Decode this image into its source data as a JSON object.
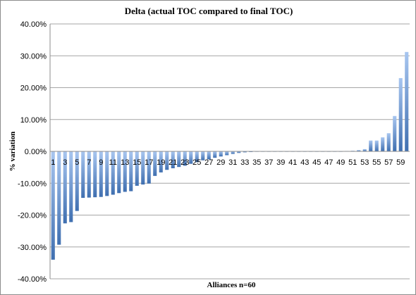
{
  "chart_data": {
    "type": "bar",
    "title": "Delta (actual TOC compared to final TOC)",
    "xlabel": "Alliances n=60",
    "ylabel": "% variation",
    "ylim": [
      -0.4,
      0.4
    ],
    "y_ticks": [
      0.4,
      0.3,
      0.2,
      0.1,
      0.0,
      -0.1,
      -0.2,
      -0.3,
      -0.4
    ],
    "y_tick_labels": [
      "40.00%",
      "30.00%",
      "20.00%",
      "10.00%",
      "0.00%",
      "-10.00%",
      "-20.00%",
      "-30.00%",
      "-40.00%"
    ],
    "grid": true,
    "legend": "none",
    "categories": [
      "1",
      "2",
      "3",
      "4",
      "5",
      "6",
      "7",
      "8",
      "9",
      "10",
      "11",
      "12",
      "13",
      "14",
      "15",
      "16",
      "17",
      "18",
      "19",
      "20",
      "21",
      "22",
      "23",
      "24",
      "25",
      "26",
      "27",
      "28",
      "29",
      "30",
      "31",
      "32",
      "33",
      "34",
      "35",
      "36",
      "37",
      "38",
      "39",
      "40",
      "41",
      "42",
      "43",
      "44",
      "45",
      "46",
      "47",
      "48",
      "49",
      "50",
      "51",
      "52",
      "53",
      "54",
      "55",
      "56",
      "57",
      "58",
      "59",
      "60"
    ],
    "x_tick_labels": [
      "1",
      "3",
      "5",
      "7",
      "9",
      "11",
      "13",
      "15",
      "17",
      "19",
      "21",
      "23",
      "25",
      "27",
      "29",
      "31",
      "33",
      "35",
      "37",
      "39",
      "41",
      "43",
      "45",
      "47",
      "49",
      "51",
      "53",
      "55",
      "57",
      "59"
    ],
    "values": [
      -0.34,
      -0.293,
      -0.226,
      -0.222,
      -0.187,
      -0.146,
      -0.145,
      -0.144,
      -0.143,
      -0.14,
      -0.136,
      -0.131,
      -0.127,
      -0.125,
      -0.108,
      -0.104,
      -0.101,
      -0.077,
      -0.066,
      -0.058,
      -0.053,
      -0.049,
      -0.045,
      -0.039,
      -0.034,
      -0.028,
      -0.025,
      -0.02,
      -0.016,
      -0.012,
      -0.008,
      -0.005,
      -0.003,
      -0.002,
      -0.001,
      -0.001,
      -0.001,
      -0.001,
      -0.001,
      -0.001,
      -0.001,
      -0.001,
      -0.001,
      -0.001,
      -0.001,
      -0.001,
      -0.001,
      -0.001,
      -0.001,
      0.001,
      0.002,
      0.004,
      0.007,
      0.034,
      0.034,
      0.044,
      0.057,
      0.111,
      0.23,
      0.312
    ],
    "colors": {
      "bar_top": "#a8c6f0",
      "bar_bottom": "#3f6fb0",
      "grid": "#a6a6a6",
      "text": "#000000"
    }
  }
}
